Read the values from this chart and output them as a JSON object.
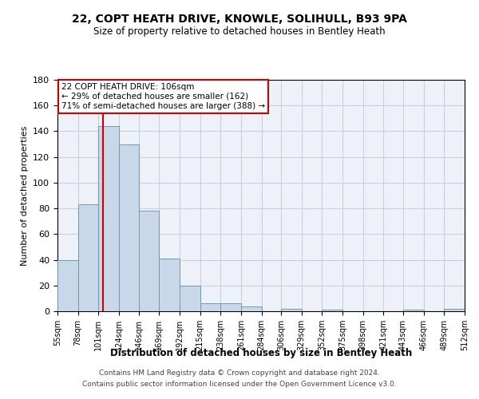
{
  "title": "22, COPT HEATH DRIVE, KNOWLE, SOLIHULL, B93 9PA",
  "subtitle": "Size of property relative to detached houses in Bentley Heath",
  "xlabel": "Distribution of detached houses by size in Bentley Heath",
  "ylabel": "Number of detached properties",
  "bin_edges": [
    55,
    78,
    101,
    124,
    146,
    169,
    192,
    215,
    238,
    261,
    284,
    306,
    329,
    352,
    375,
    398,
    421,
    443,
    466,
    489,
    512
  ],
  "bin_heights": [
    40,
    83,
    144,
    130,
    78,
    41,
    20,
    6,
    6,
    4,
    0,
    2,
    0,
    1,
    0,
    0,
    0,
    1,
    0,
    2
  ],
  "bar_color": "#c8d8e8",
  "bar_edge_color": "#7098b8",
  "vline_x": 106,
  "vline_color": "#cc0000",
  "ylim": [
    0,
    180
  ],
  "yticks": [
    0,
    20,
    40,
    60,
    80,
    100,
    120,
    140,
    160,
    180
  ],
  "annotation_text": "22 COPT HEATH DRIVE: 106sqm\n← 29% of detached houses are smaller (162)\n71% of semi-detached houses are larger (388) →",
  "annotation_box_color": "#ffffff",
  "annotation_box_edge_color": "#cc0000",
  "footer_line1": "Contains HM Land Registry data © Crown copyright and database right 2024.",
  "footer_line2": "Contains public sector information licensed under the Open Government Licence v3.0.",
  "background_color": "#eef2f8",
  "grid_color": "#c8d0dc"
}
